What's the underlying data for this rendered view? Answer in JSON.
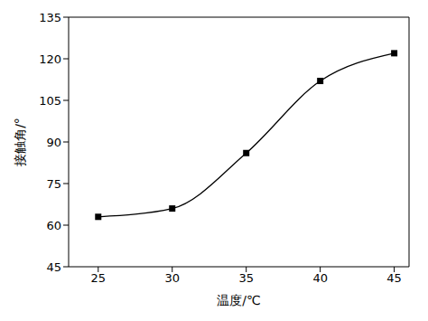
{
  "chart_data": {
    "type": "line",
    "x_label": "温度/℃",
    "y_label": "接触角/°",
    "x": [
      25,
      30,
      35,
      40,
      45
    ],
    "values": [
      63,
      66,
      86,
      112,
      122
    ],
    "color": "#000000",
    "marker": "square",
    "line_style": "solid",
    "xlim": [
      23,
      46
    ],
    "xticks": [
      25,
      30,
      35,
      40,
      45
    ],
    "ylim": [
      45,
      135
    ],
    "yticks": [
      45,
      60,
      75,
      90,
      105,
      120,
      135
    ],
    "grid": false
  }
}
